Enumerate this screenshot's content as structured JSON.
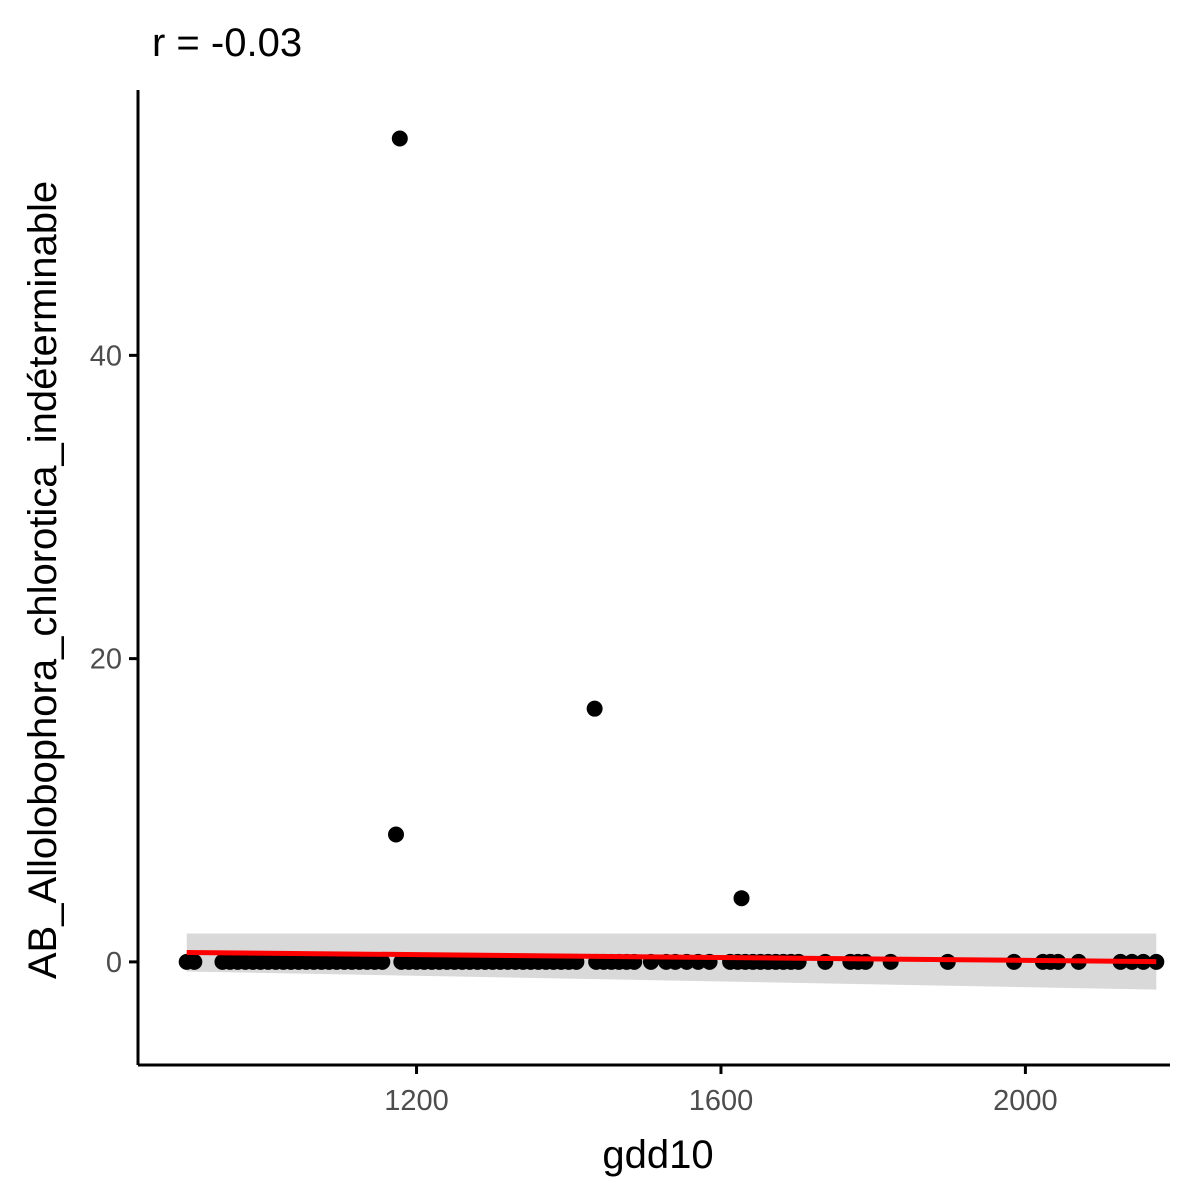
{
  "chart_data": {
    "type": "scatter",
    "title": "r = -0.03",
    "xlabel": "gdd10",
    "ylabel": "AB_Allolobophora_chlorotica_indéterminable",
    "xlim": [
      834,
      2190
    ],
    "ylim": [
      -6.8,
      57.5
    ],
    "x_ticks": [
      1200,
      1600,
      2000
    ],
    "y_ticks": [
      0,
      20,
      40
    ],
    "grid": false,
    "legend": "none",
    "colors": {
      "points": "#000000",
      "fit_line": "#ff0000",
      "confidence_band": "#d9d9d9",
      "axis": "#000000",
      "tick_label": "#4d4d4d"
    },
    "series": [
      {
        "values": [
          {
            "x": 1178,
            "y": 54.3
          },
          {
            "x": 1434,
            "y": 16.7
          },
          {
            "x": 1173,
            "y": 8.4
          },
          {
            "x": 1627,
            "y": 4.2
          },
          {
            "x": 898,
            "y": 0
          },
          {
            "x": 908,
            "y": 0
          },
          {
            "x": 945,
            "y": 0
          },
          {
            "x": 955,
            "y": 0
          },
          {
            "x": 965,
            "y": 0
          },
          {
            "x": 975,
            "y": 0
          },
          {
            "x": 985,
            "y": 0
          },
          {
            "x": 995,
            "y": 0
          },
          {
            "x": 1005,
            "y": 0
          },
          {
            "x": 1015,
            "y": 0
          },
          {
            "x": 1025,
            "y": 0
          },
          {
            "x": 1035,
            "y": 0
          },
          {
            "x": 1045,
            "y": 0
          },
          {
            "x": 1055,
            "y": 0
          },
          {
            "x": 1065,
            "y": 0
          },
          {
            "x": 1075,
            "y": 0
          },
          {
            "x": 1085,
            "y": 0
          },
          {
            "x": 1095,
            "y": 0
          },
          {
            "x": 1105,
            "y": 0
          },
          {
            "x": 1115,
            "y": 0
          },
          {
            "x": 1125,
            "y": 0
          },
          {
            "x": 1135,
            "y": 0
          },
          {
            "x": 1145,
            "y": 0
          },
          {
            "x": 1155,
            "y": 0
          },
          {
            "x": 1180,
            "y": 0
          },
          {
            "x": 1190,
            "y": 0
          },
          {
            "x": 1200,
            "y": 0
          },
          {
            "x": 1210,
            "y": 0
          },
          {
            "x": 1220,
            "y": 0
          },
          {
            "x": 1230,
            "y": 0
          },
          {
            "x": 1240,
            "y": 0
          },
          {
            "x": 1250,
            "y": 0
          },
          {
            "x": 1260,
            "y": 0
          },
          {
            "x": 1270,
            "y": 0
          },
          {
            "x": 1280,
            "y": 0
          },
          {
            "x": 1290,
            "y": 0
          },
          {
            "x": 1300,
            "y": 0
          },
          {
            "x": 1310,
            "y": 0
          },
          {
            "x": 1320,
            "y": 0
          },
          {
            "x": 1330,
            "y": 0
          },
          {
            "x": 1340,
            "y": 0
          },
          {
            "x": 1350,
            "y": 0
          },
          {
            "x": 1360,
            "y": 0
          },
          {
            "x": 1370,
            "y": 0
          },
          {
            "x": 1380,
            "y": 0
          },
          {
            "x": 1390,
            "y": 0
          },
          {
            "x": 1400,
            "y": 0
          },
          {
            "x": 1410,
            "y": 0
          },
          {
            "x": 1436,
            "y": 0
          },
          {
            "x": 1446,
            "y": 0
          },
          {
            "x": 1456,
            "y": 0
          },
          {
            "x": 1466,
            "y": 0
          },
          {
            "x": 1476,
            "y": 0
          },
          {
            "x": 1486,
            "y": 0
          },
          {
            "x": 1508,
            "y": 0
          },
          {
            "x": 1528,
            "y": 0
          },
          {
            "x": 1540,
            "y": 0
          },
          {
            "x": 1555,
            "y": 0
          },
          {
            "x": 1570,
            "y": 0
          },
          {
            "x": 1585,
            "y": 0
          },
          {
            "x": 1612,
            "y": 0
          },
          {
            "x": 1622,
            "y": 0
          },
          {
            "x": 1632,
            "y": 0
          },
          {
            "x": 1642,
            "y": 0
          },
          {
            "x": 1652,
            "y": 0
          },
          {
            "x": 1662,
            "y": 0
          },
          {
            "x": 1672,
            "y": 0
          },
          {
            "x": 1682,
            "y": 0
          },
          {
            "x": 1692,
            "y": 0
          },
          {
            "x": 1702,
            "y": 0
          },
          {
            "x": 1737,
            "y": 0
          },
          {
            "x": 1770,
            "y": 0
          },
          {
            "x": 1780,
            "y": 0
          },
          {
            "x": 1790,
            "y": 0
          },
          {
            "x": 1823,
            "y": 0
          },
          {
            "x": 1898,
            "y": 0
          },
          {
            "x": 1985,
            "y": 0
          },
          {
            "x": 2023,
            "y": 0
          },
          {
            "x": 2033,
            "y": 0
          },
          {
            "x": 2043,
            "y": 0
          },
          {
            "x": 2070,
            "y": 0
          },
          {
            "x": 2125,
            "y": 0
          },
          {
            "x": 2140,
            "y": 0
          },
          {
            "x": 2155,
            "y": 0
          },
          {
            "x": 2172,
            "y": 0
          }
        ]
      }
    ],
    "fit": {
      "method": "linear",
      "x_range": [
        898,
        2172
      ],
      "y_start": 0.62,
      "y_end": 0.02,
      "ci_upper_start": 1.87,
      "ci_lower_start": -0.63,
      "ci_upper_end": 1.87,
      "ci_lower_end": -1.83
    }
  }
}
